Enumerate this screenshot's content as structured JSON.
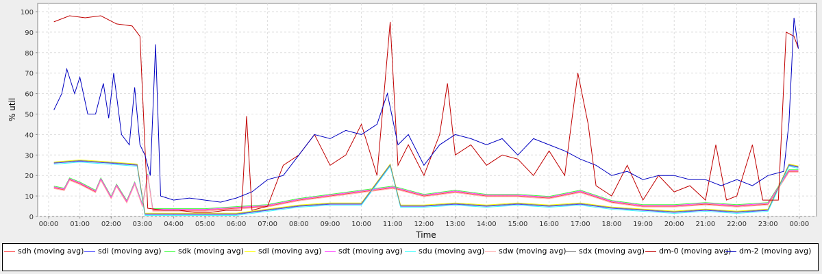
{
  "chart_data": {
    "type": "line",
    "title": "",
    "xlabel": "Time",
    "ylabel": "% util",
    "xlim_hours": [
      -0.35,
      24.55
    ],
    "ylim": [
      0,
      100
    ],
    "grid": true,
    "legend_placement": "bottom",
    "x_ticks": [
      "00:00",
      "01:00",
      "02:00",
      "03:00",
      "04:00",
      "05:00",
      "06:00",
      "07:00",
      "08:00",
      "09:00",
      "10:00",
      "11:00",
      "12:00",
      "13:00",
      "14:00",
      "15:00",
      "16:00",
      "17:00",
      "18:00",
      "19:00",
      "20:00",
      "21:00",
      "22:00",
      "23:00",
      "00:00"
    ],
    "y_ticks": [
      "0",
      "10",
      "20",
      "30",
      "40",
      "50",
      "60",
      "70",
      "80",
      "90",
      "100"
    ],
    "series": [
      {
        "name": "sdh (moving avg)",
        "color": "#ff4040",
        "x": [
          0.17,
          0.5,
          0.67,
          1.0,
          1.5,
          1.67,
          2.0,
          2.17,
          2.5,
          2.75,
          3.0,
          3.17,
          3.33,
          4,
          5,
          6,
          7,
          8,
          9,
          10,
          11,
          12,
          13,
          14,
          15,
          16,
          17,
          18,
          19,
          20,
          21,
          22,
          23,
          23.67,
          23.97
        ],
        "y": [
          14,
          13,
          18,
          16,
          12,
          18,
          9,
          15,
          7,
          16,
          5,
          20,
          3,
          3,
          3,
          4,
          5,
          8,
          10,
          12,
          14,
          10,
          12,
          10,
          10,
          9,
          12,
          7,
          5,
          5,
          6,
          5,
          6,
          22,
          22
        ]
      },
      {
        "name": "sdi (moving avg)",
        "color": "#4040ff",
        "x": [
          0.17,
          1,
          2,
          2.83,
          3.08,
          4,
          5,
          6,
          6.5,
          7,
          8,
          9,
          10,
          10.92,
          11.25,
          12,
          13,
          14,
          15,
          16,
          17,
          18,
          19,
          20,
          21,
          22,
          23,
          23.67,
          23.97
        ],
        "y": [
          26,
          27,
          26,
          25,
          1,
          1,
          1,
          1,
          2,
          3,
          5,
          6,
          6,
          25,
          5,
          5,
          6,
          5,
          6,
          5,
          6,
          4,
          3,
          2,
          3,
          2,
          3,
          25,
          24
        ]
      },
      {
        "name": "sdk (moving avg)",
        "color": "#40ff40",
        "follows": "sdh",
        "offset": 0.8
      },
      {
        "name": "sdl (moving avg)",
        "color": "#ffff00",
        "follows": "sdi",
        "offset": 0.6
      },
      {
        "name": "sdt (moving avg)",
        "color": "#ff40ff",
        "follows": "sdh",
        "offset": 0.4
      },
      {
        "name": "sdu (moving avg)",
        "color": "#40ffff",
        "follows": "sdi",
        "offset": -0.5
      },
      {
        "name": "sdw (moving avg)",
        "color": "#ffafaf",
        "follows": "sdh",
        "offset": -0.4
      },
      {
        "name": "sdx (moving avg)",
        "color": "#808080",
        "follows": "sdi",
        "offset": 0.3
      },
      {
        "name": "dm-0 (moving avg)",
        "color": "#c00000",
        "x": [
          0.17,
          0.67,
          1.17,
          1.67,
          2.17,
          2.67,
          2.92,
          3.17,
          3.67,
          4.17,
          4.67,
          5.17,
          5.67,
          6.17,
          6.33,
          6.5,
          7,
          7.5,
          8,
          8.5,
          9,
          9.5,
          10,
          10.5,
          10.92,
          11.17,
          11.5,
          12,
          12.5,
          12.75,
          13,
          13.5,
          14,
          14.5,
          15,
          15.5,
          16,
          16.5,
          16.92,
          17.25,
          17.5,
          18,
          18.5,
          19,
          19.5,
          20,
          20.5,
          21,
          21.33,
          21.67,
          22,
          22.5,
          22.83,
          23.33,
          23.58,
          23.83,
          23.97
        ],
        "y": [
          95,
          98,
          97,
          98,
          94,
          93,
          88,
          4,
          3,
          3,
          2,
          2,
          3,
          3,
          49,
          3,
          5,
          25,
          30,
          40,
          25,
          30,
          45,
          20,
          95,
          25,
          35,
          20,
          40,
          65,
          30,
          35,
          25,
          30,
          28,
          20,
          32,
          20,
          70,
          45,
          15,
          10,
          25,
          8,
          20,
          12,
          15,
          8,
          35,
          8,
          10,
          35,
          8,
          8,
          90,
          88,
          82
        ]
      },
      {
        "name": "dm-2 (moving avg)",
        "color": "#0000c0",
        "x": [
          0.17,
          0.42,
          0.58,
          0.83,
          1.0,
          1.25,
          1.5,
          1.75,
          1.92,
          2.08,
          2.33,
          2.58,
          2.75,
          2.92,
          3.08,
          3.25,
          3.42,
          3.58,
          4,
          4.5,
          5,
          5.5,
          6,
          6.5,
          7,
          7.5,
          8,
          8.5,
          9,
          9.5,
          10,
          10.5,
          10.83,
          11.17,
          11.5,
          12,
          12.5,
          13,
          13.5,
          14,
          14.5,
          15,
          15.5,
          16,
          16.5,
          17,
          17.5,
          18,
          18.5,
          19,
          19.5,
          20,
          20.5,
          21,
          21.5,
          22,
          22.5,
          23,
          23.5,
          23.67,
          23.83,
          23.97
        ],
        "y": [
          52,
          60,
          72,
          60,
          68,
          50,
          50,
          65,
          48,
          70,
          40,
          35,
          63,
          35,
          30,
          20,
          84,
          10,
          8,
          9,
          8,
          7,
          9,
          12,
          18,
          20,
          30,
          40,
          38,
          42,
          40,
          45,
          60,
          35,
          40,
          25,
          35,
          40,
          38,
          35,
          38,
          30,
          38,
          35,
          32,
          28,
          25,
          20,
          22,
          18,
          20,
          20,
          18,
          18,
          15,
          18,
          15,
          20,
          22,
          46,
          97,
          82
        ]
      }
    ]
  }
}
